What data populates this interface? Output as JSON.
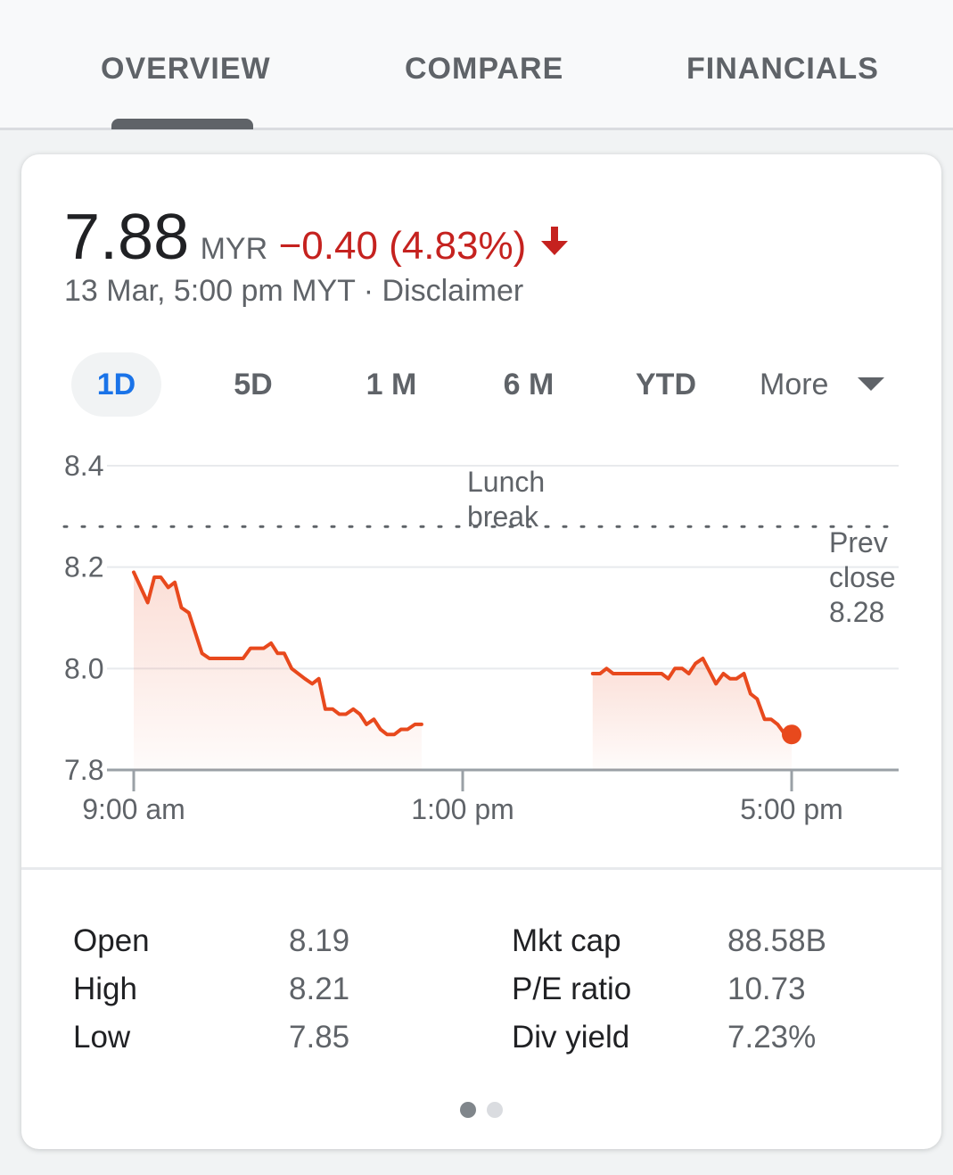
{
  "tabs": [
    {
      "label": "OVERVIEW",
      "active": true
    },
    {
      "label": "COMPARE",
      "active": false
    },
    {
      "label": "FINANCIALS",
      "active": false
    }
  ],
  "quote": {
    "price": "7.88",
    "currency": "MYR",
    "change": "−0.40 (4.83%)",
    "timestamp": "13 Mar, 5:00 pm MYT · Disclaimer",
    "change_color": "#c5221f"
  },
  "ranges": [
    {
      "label": "1D",
      "active": true
    },
    {
      "label": "5D",
      "active": false
    },
    {
      "label": "1 M",
      "active": false
    },
    {
      "label": "6 M",
      "active": false
    },
    {
      "label": "YTD",
      "active": false
    }
  ],
  "more_label": "More",
  "chart_data": {
    "type": "line",
    "y_ticks": [
      "8.4",
      "8.2",
      "8.0",
      "7.8"
    ],
    "ylim": [
      7.8,
      8.4
    ],
    "x_ticks": [
      "9:00 am",
      "1:00 pm",
      "5:00 pm"
    ],
    "xlim_hours": [
      9,
      18.4
    ],
    "line_color": "#e8491d",
    "prev_close": 8.28,
    "prev_close_label": [
      "Prev",
      "close",
      "8.28"
    ],
    "lunch_break_label": [
      "Lunch",
      "break"
    ],
    "morning_series": [
      [
        9.0,
        8.19
      ],
      [
        9.17,
        8.13
      ],
      [
        9.25,
        8.18
      ],
      [
        9.33,
        8.18
      ],
      [
        9.42,
        8.16
      ],
      [
        9.5,
        8.17
      ],
      [
        9.58,
        8.12
      ],
      [
        9.67,
        8.11
      ],
      [
        9.83,
        8.03
      ],
      [
        9.92,
        8.02
      ],
      [
        10.33,
        8.02
      ],
      [
        10.42,
        8.04
      ],
      [
        10.58,
        8.04
      ],
      [
        10.67,
        8.05
      ],
      [
        10.75,
        8.03
      ],
      [
        10.83,
        8.03
      ],
      [
        10.92,
        8.0
      ],
      [
        11.08,
        7.98
      ],
      [
        11.17,
        7.97
      ],
      [
        11.25,
        7.98
      ],
      [
        11.33,
        7.92
      ],
      [
        11.42,
        7.92
      ],
      [
        11.5,
        7.91
      ],
      [
        11.58,
        7.91
      ],
      [
        11.67,
        7.92
      ],
      [
        11.75,
        7.91
      ],
      [
        11.83,
        7.89
      ],
      [
        11.92,
        7.9
      ],
      [
        12.0,
        7.88
      ],
      [
        12.08,
        7.87
      ],
      [
        12.17,
        7.87
      ],
      [
        12.25,
        7.88
      ],
      [
        12.33,
        7.88
      ],
      [
        12.42,
        7.89
      ],
      [
        12.5,
        7.89
      ]
    ],
    "afternoon_series": [
      [
        14.58,
        7.99
      ],
      [
        14.67,
        7.99
      ],
      [
        14.75,
        8.0
      ],
      [
        14.83,
        7.99
      ],
      [
        15.42,
        7.99
      ],
      [
        15.5,
        7.98
      ],
      [
        15.58,
        8.0
      ],
      [
        15.67,
        8.0
      ],
      [
        15.75,
        7.99
      ],
      [
        15.83,
        8.01
      ],
      [
        15.92,
        8.02
      ],
      [
        16.08,
        7.97
      ],
      [
        16.17,
        7.99
      ],
      [
        16.25,
        7.98
      ],
      [
        16.33,
        7.98
      ],
      [
        16.42,
        7.99
      ],
      [
        16.5,
        7.95
      ],
      [
        16.58,
        7.94
      ],
      [
        16.67,
        7.9
      ],
      [
        16.75,
        7.9
      ],
      [
        16.83,
        7.89
      ],
      [
        16.92,
        7.87
      ],
      [
        17.0,
        7.87
      ]
    ]
  },
  "stats": [
    {
      "label": "Open",
      "value": "8.19"
    },
    {
      "label": "High",
      "value": "8.21"
    },
    {
      "label": "Low",
      "value": "7.85"
    },
    {
      "label": "Mkt cap",
      "value": "88.58B"
    },
    {
      "label": "P/E ratio",
      "value": "10.73"
    },
    {
      "label": "Div yield",
      "value": "7.23%"
    }
  ],
  "pager": {
    "count": 2,
    "active_index": 0
  }
}
